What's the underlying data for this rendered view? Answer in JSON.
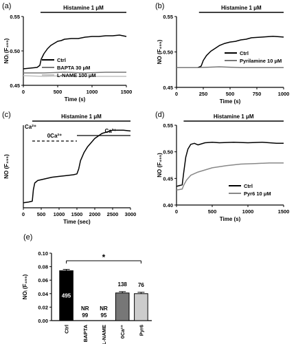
{
  "chart_data": [
    {
      "type": "line",
      "panel_label": "(a)",
      "annotation": "Histamine 1 μM",
      "annotation_span": [
        250,
        1500
      ],
      "ylabel": "NOᵢ (F₄₉₅)",
      "xlabel": "Time (s)",
      "xlim": [
        0,
        1500
      ],
      "ylim": [
        0.45,
        0.55
      ],
      "xticks": [
        "0",
        "500",
        "1000",
        "1500"
      ],
      "yticks": [
        "0.45",
        "0.50",
        "0.55"
      ],
      "legend_position": "right",
      "series": [
        {
          "name": "Ctrl",
          "color": "#000000",
          "x": [
            0,
            100,
            200,
            240,
            260,
            300,
            350,
            400,
            450,
            500,
            550,
            600,
            700,
            800,
            900,
            1000,
            1100,
            1200,
            1300,
            1400,
            1500
          ],
          "y": [
            0.474,
            0.475,
            0.476,
            0.479,
            0.488,
            0.496,
            0.503,
            0.508,
            0.511,
            0.514,
            0.515,
            0.517,
            0.518,
            0.518,
            0.52,
            0.521,
            0.521,
            0.522,
            0.522,
            0.523,
            0.521
          ]
        },
        {
          "name": "BAPTA 30 μM",
          "color": "#777777",
          "x": [
            0,
            300,
            600,
            900,
            1200,
            1500
          ],
          "y": [
            0.468,
            0.468,
            0.469,
            0.468,
            0.469,
            0.469
          ]
        },
        {
          "name": "L-NAME 100 μM",
          "color": "#c0c0c0",
          "x": [
            0,
            300,
            600,
            900,
            1200,
            1500
          ],
          "y": [
            0.464,
            0.463,
            0.464,
            0.463,
            0.463,
            0.463
          ]
        }
      ]
    },
    {
      "type": "line",
      "panel_label": "(b)",
      "annotation": "Histamine 1 μM",
      "annotation_span": [
        210,
        1000
      ],
      "ylabel": "NO (F₄₉₅)",
      "xlabel": "Time (s)",
      "xlim": [
        0,
        1000
      ],
      "ylim": [
        0.45,
        0.55
      ],
      "xticks": [
        "0",
        "250",
        "500",
        "750",
        "1000"
      ],
      "yticks": [
        "0.45",
        "0.50",
        "0.55"
      ],
      "legend_position": "right",
      "series": [
        {
          "name": "Ctrl",
          "color": "#000000",
          "x": [
            0,
            100,
            200,
            230,
            250,
            280,
            320,
            360,
            400,
            450,
            500,
            550,
            600,
            650,
            700,
            800,
            900,
            1000
          ],
          "y": [
            0.478,
            0.478,
            0.478,
            0.48,
            0.488,
            0.495,
            0.501,
            0.505,
            0.509,
            0.512,
            0.514,
            0.515,
            0.517,
            0.518,
            0.52,
            0.521,
            0.522,
            0.521
          ]
        },
        {
          "name": "Pyrilamine 10 μM",
          "color": "#777777",
          "x": [
            0,
            200,
            400,
            600,
            800,
            1000
          ],
          "y": [
            0.478,
            0.478,
            0.479,
            0.478,
            0.478,
            0.478
          ]
        }
      ]
    },
    {
      "type": "line",
      "panel_label": "(c)",
      "annotation": "Histamine 1 μM",
      "annotation_span": [
        250,
        3000
      ],
      "annotations_extra": [
        {
          "text": "Ca²⁺",
          "span": [
            0,
            250
          ]
        },
        {
          "text": "0Ca²⁺",
          "span": [
            250,
            1500
          ],
          "style": "dashed"
        },
        {
          "text": "Ca²⁺",
          "span": [
            1500,
            3000
          ]
        }
      ],
      "ylabel": "NO (F₄₉₅)",
      "xlabel": "Time (sec)",
      "xlim": [
        0,
        3000
      ],
      "ylim": [
        0.44,
        0.54
      ],
      "xticks": [
        "0",
        "500",
        "1000",
        "1500",
        "2000",
        "2500",
        "3000"
      ],
      "yticks": [],
      "series": [
        {
          "name": "",
          "color": "#000000",
          "x": [
            0,
            150,
            250,
            280,
            320,
            400,
            600,
            800,
            1000,
            1200,
            1400,
            1500,
            1550,
            1600,
            1700,
            1800,
            2000,
            2200,
            2500,
            2800,
            3000
          ],
          "y": [
            0.446,
            0.447,
            0.448,
            0.462,
            0.47,
            0.473,
            0.475,
            0.477,
            0.478,
            0.479,
            0.48,
            0.481,
            0.487,
            0.497,
            0.507,
            0.514,
            0.524,
            0.53,
            0.534,
            0.534,
            0.533
          ]
        }
      ]
    },
    {
      "type": "line",
      "panel_label": "(d)",
      "annotation": "Histamine 1 μM",
      "annotation_span": [
        100,
        1500
      ],
      "ylabel": "NO (F₄₉₅)",
      "xlabel": "Time (s)",
      "xlim": [
        0,
        1500
      ],
      "ylim": [
        0.4,
        0.55
      ],
      "xticks": [
        "0",
        "500",
        "1000",
        "1500"
      ],
      "yticks": [
        "0.40",
        "0.45",
        "0.50",
        "0.55"
      ],
      "legend_position": "bottom-right",
      "series": [
        {
          "name": "Ctrl",
          "color": "#000000",
          "x": [
            0,
            80,
            100,
            130,
            160,
            200,
            250,
            300,
            400,
            500,
            600,
            800,
            1000,
            1200,
            1400,
            1500
          ],
          "y": [
            0.435,
            0.438,
            0.46,
            0.49,
            0.505,
            0.514,
            0.516,
            0.513,
            0.517,
            0.518,
            0.517,
            0.518,
            0.517,
            0.518,
            0.516,
            0.516
          ]
        },
        {
          "name": "Pyr6 10 μM",
          "color": "#888888",
          "x": [
            0,
            80,
            100,
            140,
            200,
            300,
            400,
            500,
            700,
            900,
            1100,
            1300,
            1500
          ],
          "y": [
            0.428,
            0.43,
            0.437,
            0.447,
            0.456,
            0.462,
            0.466,
            0.47,
            0.474,
            0.477,
            0.478,
            0.479,
            0.479
          ]
        }
      ]
    },
    {
      "type": "bar",
      "panel_label": "(e)",
      "ylabel": "NOᵢ (F₄₉₅)",
      "categories": [
        "Ctrl",
        "BAPTA",
        "L-NAME",
        "0Ca²⁺",
        "Pyr6"
      ],
      "values": [
        0.074,
        0,
        0,
        0.041,
        0.04
      ],
      "errors": [
        0.002,
        0,
        0,
        0.002,
        0.002
      ],
      "colors": [
        "#000000",
        "#ffffff",
        "#ffffff",
        "#777777",
        "#cccccc"
      ],
      "bar_labels": [
        "495",
        "NR\n99",
        "NR\n95",
        "138",
        "76"
      ],
      "ylim": [
        0,
        0.1
      ],
      "yticks": [
        "0.00",
        "0.02",
        "0.04",
        "0.06",
        "0.08",
        "0.10"
      ],
      "significance": {
        "text": "*",
        "from": "Ctrl",
        "to": "Pyr6"
      }
    }
  ]
}
